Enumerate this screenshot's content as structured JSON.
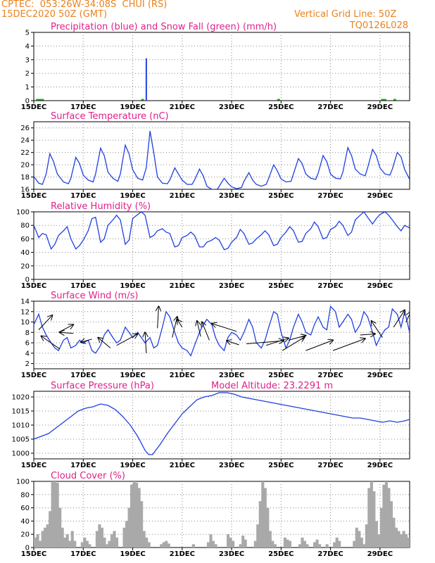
{
  "header": {
    "station": "CPTEC:  053:26W-34:08S  CHUI (RS)",
    "run": "15DEC2020 50Z (GMT)",
    "grid_note": "Vertical Grid Line: 50Z",
    "code": "TQ0126L028"
  },
  "colors": {
    "header": "#e8821e",
    "title": "#e0208a",
    "line": "#2040e0",
    "snow": "#10c010",
    "cloud": "#a9a9a9",
    "arrow": "#000000"
  },
  "x_axis": {
    "tick_labels": [
      "15DEC",
      "17DEC",
      "19DEC",
      "21DEC",
      "23DEC",
      "25DEC",
      "27DEC",
      "29DEC"
    ],
    "tick_days": [
      0,
      2,
      4,
      6,
      8,
      10,
      12,
      14
    ],
    "range_days": [
      0,
      15.2
    ]
  },
  "chart_data": [
    {
      "id": "precip",
      "type": "bar",
      "title": "Precipitation (blue) and Snow Fall (green) (mm/h)",
      "ylim": [
        0,
        5
      ],
      "yticks": [
        0,
        1,
        2,
        3,
        4,
        5
      ],
      "series": [
        {
          "name": "Precipitation",
          "x": [
            4.55
          ],
          "values": [
            3.1
          ]
        },
        {
          "name": "Snow Fall",
          "x": [
            0.15,
            0.25,
            0.35,
            4.4,
            9.9,
            14.1,
            14.2,
            14.6
          ],
          "values": [
            0.05,
            0.05,
            0.05,
            0.05,
            0.05,
            0.05,
            0.05,
            0.05
          ]
        }
      ]
    },
    {
      "id": "temperature",
      "type": "line",
      "title": "Surface Temperature (nC)",
      "ylim": [
        16,
        27
      ],
      "yticks": [
        16,
        18,
        20,
        22,
        24,
        26
      ],
      "x": [
        0,
        0.2,
        0.35,
        0.5,
        0.65,
        0.8,
        0.95,
        1.2,
        1.4,
        1.5,
        1.7,
        1.85,
        2.0,
        2.2,
        2.4,
        2.5,
        2.7,
        2.85,
        3.0,
        3.2,
        3.4,
        3.5,
        3.7,
        3.85,
        4.0,
        4.2,
        4.4,
        4.55,
        4.7,
        4.85,
        5.0,
        5.2,
        5.4,
        5.5,
        5.7,
        5.85,
        6.0,
        6.2,
        6.4,
        6.5,
        6.7,
        6.85,
        7.0,
        7.2,
        7.4,
        7.5,
        7.7,
        7.85,
        8.0,
        8.2,
        8.4,
        8.5,
        8.7,
        8.85,
        9.0,
        9.2,
        9.4,
        9.5,
        9.7,
        9.85,
        10.0,
        10.2,
        10.4,
        10.5,
        10.7,
        10.85,
        11.0,
        11.2,
        11.4,
        11.5,
        11.7,
        11.85,
        12.0,
        12.2,
        12.4,
        12.5,
        12.7,
        12.85,
        13.0,
        13.2,
        13.4,
        13.5,
        13.7,
        13.85,
        14.0,
        14.2,
        14.4,
        14.5,
        14.7,
        14.85,
        15.0,
        15.2
      ],
      "values": [
        18.1,
        17.0,
        16.8,
        18.5,
        21.8,
        20.5,
        18.5,
        17.2,
        16.9,
        17.8,
        21.2,
        20.2,
        18.3,
        17.5,
        17.2,
        18.5,
        22.7,
        21.5,
        18.8,
        17.8,
        17.3,
        18.5,
        23.2,
        21.8,
        19.2,
        17.8,
        17.5,
        19.5,
        25.5,
        22.0,
        18.0,
        17.0,
        16.9,
        17.5,
        19.5,
        18.5,
        17.5,
        16.8,
        16.8,
        17.5,
        19.3,
        18.2,
        16.5,
        16.0,
        15.9,
        16.5,
        17.8,
        17.0,
        16.4,
        16.1,
        16.3,
        17.3,
        18.7,
        17.5,
        16.8,
        16.5,
        16.8,
        17.8,
        20.0,
        19.0,
        17.7,
        17.2,
        17.3,
        18.5,
        21.0,
        20.2,
        18.5,
        17.8,
        17.6,
        18.6,
        21.5,
        20.5,
        18.5,
        17.8,
        17.7,
        18.8,
        22.8,
        21.5,
        19.3,
        18.5,
        18.2,
        19.5,
        22.5,
        21.5,
        19.5,
        18.5,
        18.3,
        19.3,
        22.0,
        21.3,
        19.2,
        17.6
      ]
    },
    {
      "id": "humidity",
      "type": "line",
      "title": "Relative Humidity (%)",
      "ylim": [
        0,
        100
      ],
      "yticks": [
        0,
        20,
        40,
        60,
        80,
        100
      ],
      "x": [
        0,
        0.2,
        0.35,
        0.5,
        0.7,
        0.85,
        1.0,
        1.2,
        1.35,
        1.5,
        1.7,
        1.85,
        2.0,
        2.2,
        2.35,
        2.5,
        2.7,
        2.85,
        3.0,
        3.2,
        3.35,
        3.5,
        3.7,
        3.85,
        4.0,
        4.2,
        4.35,
        4.5,
        4.7,
        4.85,
        5.0,
        5.2,
        5.35,
        5.5,
        5.7,
        5.85,
        6.0,
        6.2,
        6.35,
        6.5,
        6.7,
        6.85,
        7.0,
        7.2,
        7.35,
        7.5,
        7.7,
        7.85,
        8.0,
        8.2,
        8.35,
        8.5,
        8.7,
        8.85,
        9.0,
        9.2,
        9.35,
        9.5,
        9.7,
        9.85,
        10.0,
        10.2,
        10.35,
        10.5,
        10.7,
        10.85,
        11.0,
        11.2,
        11.35,
        11.5,
        11.7,
        11.85,
        12.0,
        12.2,
        12.35,
        12.5,
        12.7,
        12.85,
        13.0,
        13.2,
        13.35,
        13.5,
        13.7,
        13.85,
        14.0,
        14.2,
        14.35,
        14.5,
        14.7,
        14.85,
        15.0,
        15.2
      ],
      "values": [
        80,
        62,
        68,
        66,
        45,
        52,
        65,
        72,
        78,
        60,
        45,
        50,
        58,
        72,
        90,
        92,
        55,
        60,
        80,
        88,
        95,
        88,
        52,
        58,
        90,
        96,
        100,
        95,
        62,
        65,
        72,
        75,
        70,
        68,
        48,
        50,
        62,
        65,
        70,
        65,
        48,
        48,
        55,
        58,
        62,
        58,
        44,
        46,
        55,
        62,
        74,
        68,
        52,
        54,
        60,
        66,
        72,
        66,
        50,
        52,
        62,
        70,
        78,
        72,
        55,
        56,
        68,
        75,
        85,
        78,
        60,
        62,
        74,
        78,
        86,
        80,
        65,
        70,
        88,
        95,
        100,
        92,
        82,
        90,
        96,
        100,
        95,
        88,
        78,
        72,
        80,
        76
      ]
    },
    {
      "id": "wind",
      "type": "line",
      "title": "Surface Wind (m/s)",
      "ylim": [
        1,
        14
      ],
      "yticks": [
        2,
        4,
        6,
        8,
        10,
        12,
        14
      ],
      "x": [
        0,
        0.2,
        0.35,
        0.5,
        0.7,
        0.85,
        1.0,
        1.2,
        1.35,
        1.5,
        1.7,
        1.85,
        2.0,
        2.2,
        2.35,
        2.5,
        2.7,
        2.85,
        3.0,
        3.2,
        3.35,
        3.5,
        3.7,
        3.85,
        4.0,
        4.2,
        4.35,
        4.5,
        4.7,
        4.85,
        5.0,
        5.2,
        5.35,
        5.5,
        5.7,
        5.85,
        6.0,
        6.2,
        6.35,
        6.5,
        6.7,
        6.85,
        7.0,
        7.2,
        7.35,
        7.5,
        7.7,
        7.85,
        8.0,
        8.2,
        8.35,
        8.5,
        8.7,
        8.85,
        9.0,
        9.2,
        9.35,
        9.5,
        9.7,
        9.85,
        10.0,
        10.2,
        10.35,
        10.5,
        10.7,
        10.85,
        11.0,
        11.2,
        11.35,
        11.5,
        11.7,
        11.85,
        12.0,
        12.2,
        12.35,
        12.5,
        12.7,
        12.85,
        13.0,
        13.2,
        13.35,
        13.5,
        13.7,
        13.85,
        14.0,
        14.2,
        14.35,
        14.5,
        14.7,
        14.85,
        15.0,
        15.2
      ],
      "values": [
        9.5,
        11.5,
        9.0,
        7.5,
        6.0,
        5.0,
        4.5,
        6.5,
        7.0,
        5.0,
        5.5,
        6.5,
        6.0,
        6.5,
        4.5,
        4.0,
        5.5,
        7.5,
        8.5,
        7.0,
        6.0,
        6.5,
        9.0,
        8.0,
        7.0,
        8.0,
        7.0,
        6.0,
        7.0,
        5.0,
        5.5,
        9.0,
        12.0,
        11.0,
        8.0,
        6.0,
        5.0,
        4.5,
        3.5,
        5.5,
        8.0,
        9.5,
        10.5,
        9.5,
        7.0,
        5.5,
        4.5,
        7.0,
        8.0,
        7.5,
        6.5,
        8.0,
        10.5,
        9.0,
        6.0,
        5.0,
        6.5,
        9.0,
        12.0,
        11.5,
        8.0,
        5.0,
        6.5,
        9.0,
        11.5,
        10.0,
        8.0,
        7.5,
        9.5,
        11.0,
        9.0,
        8.5,
        13.0,
        12.0,
        9.0,
        10.0,
        11.5,
        10.5,
        8.0,
        9.5,
        12.0,
        11.0,
        8.0,
        5.5,
        7.0,
        8.5,
        9.0,
        12.5,
        11.5,
        9.0,
        12.0,
        8.0
      ],
      "vectors": [
        {
          "x": 0.2,
          "y": 8.5,
          "dx": 0.55,
          "dy": 2.8
        },
        {
          "x": 1.05,
          "y": 4.8,
          "dx": -0.75,
          "dy": 2.5
        },
        {
          "x": 1.0,
          "y": 8.0,
          "dx": 0.6,
          "dy": 1.5
        },
        {
          "x": 1.6,
          "y": 7.8,
          "dx": -0.55,
          "dy": 0.2
        },
        {
          "x": 2.35,
          "y": 6.7,
          "dx": -0.45,
          "dy": -0.6
        },
        {
          "x": 3.1,
          "y": 5.0,
          "dx": -0.5,
          "dy": 2.0
        },
        {
          "x": 3.35,
          "y": 5.5,
          "dx": 0.85,
          "dy": 2.2
        },
        {
          "x": 4.55,
          "y": 4.0,
          "dx": -0.05,
          "dy": 4.0
        },
        {
          "x": 5.0,
          "y": 8.8,
          "dx": 0.05,
          "dy": 4.2
        },
        {
          "x": 5.6,
          "y": 7.0,
          "dx": 0.2,
          "dy": 4.0
        },
        {
          "x": 6.0,
          "y": 9.0,
          "dx": -0.2,
          "dy": 1.5
        },
        {
          "x": 6.75,
          "y": 7.2,
          "dx": -0.15,
          "dy": 3.0
        },
        {
          "x": 7.1,
          "y": 6.5,
          "dx": -0.3,
          "dy": 3.5
        },
        {
          "x": 8.2,
          "y": 8.2,
          "dx": -1.0,
          "dy": 1.5
        },
        {
          "x": 8.6,
          "y": 5.8,
          "dx": 1.5,
          "dy": 0.6
        },
        {
          "x": 8.3,
          "y": 5.6,
          "dx": -0.5,
          "dy": 0.8
        },
        {
          "x": 9.4,
          "y": 5.5,
          "dx": 0.9,
          "dy": 1.4
        },
        {
          "x": 10.05,
          "y": 4.5,
          "dx": 0.9,
          "dy": 2.6
        },
        {
          "x": 10.3,
          "y": 6.5,
          "dx": 0.7,
          "dy": 0.9
        },
        {
          "x": 11.0,
          "y": 4.5,
          "dx": 1.1,
          "dy": 2.0
        },
        {
          "x": 12.1,
          "y": 4.5,
          "dx": 1.3,
          "dy": 2.3
        },
        {
          "x": 13.2,
          "y": 7.5,
          "dx": 0.6,
          "dy": 0.2
        },
        {
          "x": 14.1,
          "y": 7.0,
          "dx": -0.45,
          "dy": 3.2
        },
        {
          "x": 14.55,
          "y": 9.0,
          "dx": 0.45,
          "dy": 3.3
        },
        {
          "x": 15.05,
          "y": 10.0,
          "dx": 0.2,
          "dy": 2.0
        }
      ]
    },
    {
      "id": "pressure",
      "type": "line",
      "title": "Surface Pressure (hPa)",
      "subtitle": "Model Altitude: 23.2291  m",
      "ylim": [
        998,
        1022
      ],
      "yticks": [
        1000,
        1005,
        1010,
        1015,
        1020
      ],
      "x": [
        0,
        0.3,
        0.6,
        0.9,
        1.2,
        1.5,
        1.8,
        2.1,
        2.4,
        2.7,
        3.0,
        3.3,
        3.6,
        3.9,
        4.2,
        4.5,
        4.65,
        4.8,
        5.1,
        5.4,
        5.7,
        6.0,
        6.3,
        6.6,
        6.9,
        7.2,
        7.5,
        7.8,
        8.1,
        8.4,
        8.7,
        9.0,
        9.3,
        9.6,
        9.9,
        10.2,
        10.5,
        10.8,
        11.1,
        11.4,
        11.7,
        12.0,
        12.3,
        12.6,
        12.9,
        13.2,
        13.5,
        13.8,
        14.1,
        14.4,
        14.7,
        15.0,
        15.2
      ],
      "values": [
        1005,
        1006,
        1007,
        1009,
        1011,
        1013,
        1015,
        1016,
        1016.5,
        1017.5,
        1017,
        1015.5,
        1013,
        1010,
        1006,
        1001,
        999.5,
        999.5,
        1003,
        1007,
        1010.5,
        1014,
        1016.5,
        1019,
        1020,
        1020.5,
        1021.5,
        1021.5,
        1021,
        1020,
        1019.5,
        1019,
        1018.5,
        1018,
        1017.5,
        1017,
        1016.5,
        1016,
        1015.5,
        1015,
        1014.5,
        1014,
        1013.5,
        1013,
        1012.5,
        1012.5,
        1012,
        1011.5,
        1011,
        1011.5,
        1011,
        1011.5,
        1012
      ]
    },
    {
      "id": "cloud",
      "type": "bar",
      "title": "Cloud Cover (%)",
      "ylim": [
        0,
        100
      ],
      "yticks": [
        0,
        20,
        40,
        60,
        80,
        100
      ],
      "x": [
        0,
        0.1,
        0.2,
        0.3,
        0.4,
        0.5,
        0.6,
        0.7,
        0.8,
        0.9,
        1.0,
        1.1,
        1.2,
        1.3,
        1.4,
        1.5,
        1.6,
        1.7,
        1.8,
        1.9,
        2.0,
        2.1,
        2.2,
        2.3,
        2.4,
        2.5,
        2.6,
        2.7,
        2.8,
        2.9,
        3.0,
        3.1,
        3.2,
        3.3,
        3.4,
        3.5,
        3.6,
        3.7,
        3.8,
        3.9,
        4.0,
        4.1,
        4.2,
        4.3,
        4.4,
        4.5,
        4.6,
        4.7,
        4.8,
        4.9,
        5.0,
        5.1,
        5.2,
        5.3,
        5.4,
        5.5,
        5.6,
        5.7,
        5.8,
        5.9,
        6.0,
        6.1,
        6.2,
        6.3,
        6.4,
        6.5,
        6.6,
        6.7,
        6.8,
        6.9,
        7.0,
        7.1,
        7.2,
        7.3,
        7.4,
        7.5,
        7.6,
        7.7,
        7.8,
        7.9,
        8.0,
        8.1,
        8.2,
        8.3,
        8.4,
        8.5,
        8.6,
        8.7,
        8.8,
        8.9,
        9.0,
        9.1,
        9.2,
        9.3,
        9.4,
        9.5,
        9.6,
        9.7,
        9.8,
        9.9,
        10.0,
        10.1,
        10.2,
        10.3,
        10.4,
        10.5,
        10.6,
        10.7,
        10.8,
        10.9,
        11.0,
        11.1,
        11.2,
        11.3,
        11.4,
        11.5,
        11.6,
        11.7,
        11.8,
        11.9,
        12.0,
        12.1,
        12.2,
        12.3,
        12.4,
        12.5,
        12.6,
        12.7,
        12.8,
        12.9,
        13.0,
        13.1,
        13.2,
        13.3,
        13.4,
        13.5,
        13.6,
        13.7,
        13.8,
        13.9,
        14.0,
        14.1,
        14.2,
        14.3,
        14.4,
        14.5,
        14.6,
        14.7,
        14.8,
        14.9,
        15.0,
        15.1
      ],
      "values": [
        15,
        20,
        10,
        25,
        30,
        35,
        55,
        100,
        100,
        98,
        60,
        30,
        15,
        20,
        10,
        25,
        10,
        0,
        0,
        8,
        15,
        10,
        5,
        0,
        0,
        25,
        35,
        30,
        15,
        5,
        10,
        20,
        25,
        15,
        0,
        0,
        30,
        40,
        60,
        95,
        100,
        98,
        90,
        70,
        25,
        15,
        8,
        0,
        0,
        0,
        0,
        5,
        8,
        10,
        6,
        0,
        0,
        0,
        0,
        0,
        0,
        0,
        0,
        0,
        5,
        0,
        0,
        0,
        0,
        0,
        8,
        20,
        10,
        5,
        0,
        0,
        0,
        0,
        20,
        15,
        10,
        0,
        0,
        5,
        18,
        12,
        0,
        0,
        0,
        10,
        35,
        70,
        100,
        90,
        60,
        25,
        10,
        5,
        0,
        0,
        0,
        15,
        12,
        10,
        0,
        0,
        0,
        5,
        15,
        10,
        5,
        0,
        0,
        8,
        12,
        5,
        0,
        0,
        5,
        0,
        0,
        8,
        15,
        10,
        0,
        0,
        0,
        0,
        0,
        10,
        30,
        25,
        15,
        5,
        35,
        90,
        100,
        85,
        40,
        20,
        60,
        95,
        100,
        90,
        70,
        45,
        30,
        25,
        20,
        25,
        20,
        15
      ]
    }
  ]
}
